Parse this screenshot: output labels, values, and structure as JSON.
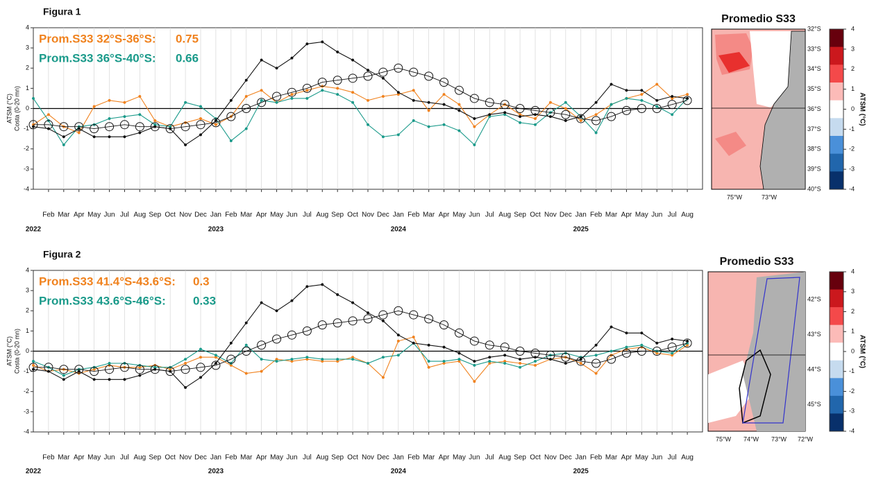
{
  "chart_data": [
    {
      "type": "line",
      "title": "Figura 1",
      "ylabel": "ATSM (°C)",
      "ylabel2": "Costa (0-20 mn)",
      "ylim": [
        -4,
        4
      ],
      "yticks": [
        -4,
        -3,
        -2,
        -1,
        0,
        1,
        2,
        3,
        4
      ],
      "grid": true,
      "xlim": [
        "2022-01",
        "2025-09"
      ],
      "x": [
        "2022-01",
        "2022-02",
        "2022-03",
        "2022-04",
        "2022-05",
        "2022-06",
        "2022-07",
        "2022-08",
        "2022-09",
        "2022-10",
        "2022-11",
        "2022-12",
        "2023-01",
        "2023-02",
        "2023-03",
        "2023-04",
        "2023-05",
        "2023-06",
        "2023-07",
        "2023-08",
        "2023-09",
        "2023-10",
        "2023-11",
        "2023-12",
        "2024-01",
        "2024-02",
        "2024-03",
        "2024-04",
        "2024-05",
        "2024-06",
        "2024-07",
        "2024-08",
        "2024-09",
        "2024-10",
        "2024-11",
        "2024-12",
        "2025-01",
        "2025-02",
        "2025-03",
        "2025-04",
        "2025-05",
        "2025-06",
        "2025-07",
        "2025-08"
      ],
      "xticks": [
        {
          "value": "2022-02",
          "label": "Feb"
        },
        {
          "value": "2022-03",
          "label": "Mar"
        },
        {
          "value": "2022-04",
          "label": "Apr"
        },
        {
          "value": "2022-05",
          "label": "May"
        },
        {
          "value": "2022-06",
          "label": "Jun"
        },
        {
          "value": "2022-07",
          "label": "Jul"
        },
        {
          "value": "2022-08",
          "label": "Aug"
        },
        {
          "value": "2022-09",
          "label": "Sep"
        },
        {
          "value": "2022-10",
          "label": "Oct"
        },
        {
          "value": "2022-11",
          "label": "Nov"
        },
        {
          "value": "2022-12",
          "label": "Dec"
        },
        {
          "value": "2023-01",
          "label": "Jan"
        },
        {
          "value": "2023-02",
          "label": "Feb"
        },
        {
          "value": "2023-03",
          "label": "Mar"
        },
        {
          "value": "2023-04",
          "label": "Apr"
        },
        {
          "value": "2023-05",
          "label": "May"
        },
        {
          "value": "2023-06",
          "label": "Jun"
        },
        {
          "value": "2023-07",
          "label": "Jul"
        },
        {
          "value": "2023-08",
          "label": "Aug"
        },
        {
          "value": "2023-09",
          "label": "Sep"
        },
        {
          "value": "2023-10",
          "label": "Oct"
        },
        {
          "value": "2023-11",
          "label": "Nov"
        },
        {
          "value": "2023-12",
          "label": "Dec"
        },
        {
          "value": "2024-01",
          "label": "Jan"
        },
        {
          "value": "2024-02",
          "label": "Feb"
        },
        {
          "value": "2024-03",
          "label": "Mar"
        },
        {
          "value": "2024-04",
          "label": "Apr"
        },
        {
          "value": "2024-05",
          "label": "May"
        },
        {
          "value": "2024-06",
          "label": "Jun"
        },
        {
          "value": "2024-07",
          "label": "Jul"
        },
        {
          "value": "2024-08",
          "label": "Aug"
        },
        {
          "value": "2024-09",
          "label": "Sep"
        },
        {
          "value": "2024-10",
          "label": "Oct"
        },
        {
          "value": "2024-11",
          "label": "Nov"
        },
        {
          "value": "2024-12",
          "label": "Dec"
        },
        {
          "value": "2025-01",
          "label": "Jan"
        },
        {
          "value": "2025-02",
          "label": "Feb"
        },
        {
          "value": "2025-03",
          "label": "Mar"
        },
        {
          "value": "2025-04",
          "label": "Apr"
        },
        {
          "value": "2025-05",
          "label": "May"
        },
        {
          "value": "2025-06",
          "label": "Jun"
        },
        {
          "value": "2025-07",
          "label": "Jul"
        },
        {
          "value": "2025-08",
          "label": "Aug"
        }
      ],
      "year_ticks": [
        {
          "value": "2022-01",
          "label": "2022"
        },
        {
          "value": "2023-01",
          "label": "2023"
        },
        {
          "value": "2024-01",
          "label": "2024"
        },
        {
          "value": "2025-01",
          "label": "2025"
        }
      ],
      "series": [
        {
          "name": "Prom.S33 32°S-36°S:",
          "mean": 0.75,
          "color": "#f0821e",
          "marker": "dot",
          "values": [
            -0.8,
            -0.3,
            -0.9,
            -1.2,
            0.1,
            0.4,
            0.3,
            0.6,
            -0.6,
            -0.9,
            -0.7,
            -0.5,
            -0.8,
            -0.4,
            0.6,
            0.9,
            0.3,
            0.7,
            0.9,
            1.1,
            1.0,
            0.8,
            0.4,
            0.6,
            0.7,
            0.9,
            -0.1,
            0.7,
            0.2,
            -0.9,
            -0.3,
            0.2,
            -0.3,
            -0.5,
            0.3,
            0.0,
            -0.6,
            -0.3,
            0.2,
            0.5,
            0.7,
            1.2,
            0.5,
            0.7
          ]
        },
        {
          "name": "Prom.S33 36°S-40°S:",
          "mean": 0.66,
          "color": "#1a9a8a",
          "marker": "dot",
          "values": [
            0.5,
            -0.6,
            -1.8,
            -0.9,
            -0.8,
            -0.5,
            -0.4,
            -0.3,
            -0.8,
            -0.9,
            0.3,
            0.1,
            -0.5,
            -1.6,
            -1.0,
            0.4,
            0.3,
            0.5,
            0.5,
            0.9,
            0.7,
            0.3,
            -0.8,
            -1.4,
            -1.3,
            -0.6,
            -0.9,
            -0.8,
            -1.1,
            -1.8,
            -0.4,
            -0.3,
            -0.7,
            -0.8,
            -0.2,
            0.3,
            -0.4,
            -1.2,
            0.2,
            0.5,
            0.4,
            0.1,
            -0.3,
            0.5
          ]
        },
        {
          "color": "#111111",
          "marker": "dot",
          "values": [
            -0.9,
            -1.0,
            -1.4,
            -1.0,
            -1.4,
            -1.4,
            -1.4,
            -1.2,
            -0.9,
            -1.0,
            -1.8,
            -1.3,
            -0.6,
            0.4,
            1.4,
            2.4,
            2.0,
            2.5,
            3.2,
            3.3,
            2.8,
            2.4,
            1.9,
            1.5,
            0.8,
            0.4,
            0.3,
            0.2,
            -0.1,
            -0.5,
            -0.3,
            -0.2,
            -0.4,
            -0.3,
            -0.4,
            -0.6,
            -0.4,
            0.3,
            1.2,
            0.9,
            0.9,
            0.4,
            0.6,
            0.5
          ]
        },
        {
          "color": "#111111",
          "marker": "circle",
          "values": [
            -0.8,
            -0.8,
            -0.9,
            -0.9,
            -1.0,
            -0.9,
            -0.8,
            -0.9,
            -0.9,
            -1.0,
            -0.9,
            -0.8,
            -0.7,
            -0.4,
            0.0,
            0.3,
            0.6,
            0.8,
            1.0,
            1.3,
            1.4,
            1.5,
            1.6,
            1.8,
            2.0,
            1.8,
            1.6,
            1.3,
            0.9,
            0.5,
            0.3,
            0.2,
            0.0,
            -0.1,
            -0.2,
            -0.3,
            -0.5,
            -0.6,
            -0.4,
            -0.1,
            0.0,
            0.0,
            0.2,
            0.4
          ]
        }
      ]
    },
    {
      "type": "line",
      "title": "Figura 2",
      "ylabel": "ATSM (°C)",
      "ylabel2": "Costa (0-20 mn)",
      "ylim": [
        -4,
        4
      ],
      "yticks": [
        -4,
        -3,
        -2,
        -1,
        0,
        1,
        2,
        3,
        4
      ],
      "grid": true,
      "xlim": [
        "2022-01",
        "2025-09"
      ],
      "x": [
        "2022-01",
        "2022-02",
        "2022-03",
        "2022-04",
        "2022-05",
        "2022-06",
        "2022-07",
        "2022-08",
        "2022-09",
        "2022-10",
        "2022-11",
        "2022-12",
        "2023-01",
        "2023-02",
        "2023-03",
        "2023-04",
        "2023-05",
        "2023-06",
        "2023-07",
        "2023-08",
        "2023-09",
        "2023-10",
        "2023-11",
        "2023-12",
        "2024-01",
        "2024-02",
        "2024-03",
        "2024-04",
        "2024-05",
        "2024-06",
        "2024-07",
        "2024-08",
        "2024-09",
        "2024-10",
        "2024-11",
        "2024-12",
        "2025-01",
        "2025-02",
        "2025-03",
        "2025-04",
        "2025-05",
        "2025-06",
        "2025-07",
        "2025-08"
      ],
      "xticks": [
        {
          "value": "2022-02",
          "label": "Feb"
        },
        {
          "value": "2022-03",
          "label": "Mar"
        },
        {
          "value": "2022-04",
          "label": "Apr"
        },
        {
          "value": "2022-05",
          "label": "May"
        },
        {
          "value": "2022-06",
          "label": "Jun"
        },
        {
          "value": "2022-07",
          "label": "Jul"
        },
        {
          "value": "2022-08",
          "label": "Aug"
        },
        {
          "value": "2022-09",
          "label": "Sep"
        },
        {
          "value": "2022-10",
          "label": "Oct"
        },
        {
          "value": "2022-11",
          "label": "Nov"
        },
        {
          "value": "2022-12",
          "label": "Dec"
        },
        {
          "value": "2023-01",
          "label": "Jan"
        },
        {
          "value": "2023-02",
          "label": "Feb"
        },
        {
          "value": "2023-03",
          "label": "Mar"
        },
        {
          "value": "2023-04",
          "label": "Apr"
        },
        {
          "value": "2023-05",
          "label": "May"
        },
        {
          "value": "2023-06",
          "label": "Jun"
        },
        {
          "value": "2023-07",
          "label": "Jul"
        },
        {
          "value": "2023-08",
          "label": "Aug"
        },
        {
          "value": "2023-09",
          "label": "Sep"
        },
        {
          "value": "2023-10",
          "label": "Oct"
        },
        {
          "value": "2023-11",
          "label": "Nov"
        },
        {
          "value": "2023-12",
          "label": "Dec"
        },
        {
          "value": "2024-01",
          "label": "Jan"
        },
        {
          "value": "2024-02",
          "label": "Feb"
        },
        {
          "value": "2024-03",
          "label": "Mar"
        },
        {
          "value": "2024-04",
          "label": "Apr"
        },
        {
          "value": "2024-05",
          "label": "May"
        },
        {
          "value": "2024-06",
          "label": "Jun"
        },
        {
          "value": "2024-07",
          "label": "Jul"
        },
        {
          "value": "2024-08",
          "label": "Aug"
        },
        {
          "value": "2024-09",
          "label": "Sep"
        },
        {
          "value": "2024-10",
          "label": "Oct"
        },
        {
          "value": "2024-11",
          "label": "Nov"
        },
        {
          "value": "2024-12",
          "label": "Dec"
        },
        {
          "value": "2025-01",
          "label": "Jan"
        },
        {
          "value": "2025-02",
          "label": "Feb"
        },
        {
          "value": "2025-03",
          "label": "Mar"
        },
        {
          "value": "2025-04",
          "label": "Apr"
        },
        {
          "value": "2025-05",
          "label": "May"
        },
        {
          "value": "2025-06",
          "label": "Jun"
        },
        {
          "value": "2025-07",
          "label": "Jul"
        },
        {
          "value": "2025-08",
          "label": "Aug"
        }
      ],
      "year_ticks": [
        {
          "value": "2022-01",
          "label": "2022"
        },
        {
          "value": "2023-01",
          "label": "2023"
        },
        {
          "value": "2024-01",
          "label": "2024"
        },
        {
          "value": "2025-01",
          "label": "2025"
        }
      ],
      "series": [
        {
          "name": "Prom.S33 41.4°S-43.6°S:",
          "mean": 0.3,
          "color": "#f0821e",
          "marker": "dot",
          "values": [
            -0.7,
            -1.0,
            -0.9,
            -1.1,
            -0.9,
            -0.7,
            -0.8,
            -0.8,
            -0.7,
            -0.9,
            -0.6,
            -0.3,
            -0.3,
            -0.7,
            -1.1,
            -1.0,
            -0.4,
            -0.5,
            -0.4,
            -0.5,
            -0.5,
            -0.3,
            -0.6,
            -1.3,
            0.5,
            0.7,
            -0.8,
            -0.6,
            -0.5,
            -1.5,
            -0.6,
            -0.5,
            -0.6,
            -0.7,
            -0.4,
            -0.3,
            -0.6,
            -1.1,
            -0.2,
            0.1,
            0.2,
            -0.1,
            -0.2,
            0.3
          ]
        },
        {
          "name": "Prom.S33 43.6°S-46°S:",
          "mean": 0.33,
          "color": "#1a9a8a",
          "marker": "dot",
          "values": [
            -0.5,
            -0.8,
            -1.2,
            -0.9,
            -0.8,
            -0.6,
            -0.6,
            -0.7,
            -0.8,
            -0.8,
            -0.4,
            0.1,
            -0.2,
            -0.6,
            0.3,
            -0.4,
            -0.5,
            -0.4,
            -0.3,
            -0.4,
            -0.4,
            -0.4,
            -0.6,
            -0.3,
            -0.2,
            0.4,
            -0.5,
            -0.5,
            -0.4,
            -0.7,
            -0.5,
            -0.6,
            -0.8,
            -0.5,
            -0.2,
            -0.1,
            -0.3,
            -0.2,
            0.0,
            0.2,
            0.3,
            0.0,
            -0.1,
            0.4
          ]
        },
        {
          "color": "#111111",
          "marker": "dot",
          "values": [
            -0.9,
            -1.0,
            -1.4,
            -1.0,
            -1.4,
            -1.4,
            -1.4,
            -1.2,
            -0.9,
            -1.0,
            -1.8,
            -1.3,
            -0.6,
            0.4,
            1.4,
            2.4,
            2.0,
            2.5,
            3.2,
            3.3,
            2.8,
            2.4,
            1.9,
            1.5,
            0.8,
            0.4,
            0.3,
            0.2,
            -0.1,
            -0.5,
            -0.3,
            -0.2,
            -0.4,
            -0.3,
            -0.4,
            -0.6,
            -0.4,
            0.3,
            1.2,
            0.9,
            0.9,
            0.4,
            0.6,
            0.5
          ]
        },
        {
          "color": "#111111",
          "marker": "circle",
          "values": [
            -0.8,
            -0.8,
            -0.9,
            -0.9,
            -1.0,
            -0.9,
            -0.8,
            -0.9,
            -0.9,
            -1.0,
            -0.9,
            -0.8,
            -0.7,
            -0.4,
            0.0,
            0.3,
            0.6,
            0.8,
            1.0,
            1.3,
            1.4,
            1.5,
            1.6,
            1.8,
            2.0,
            1.8,
            1.6,
            1.3,
            0.9,
            0.5,
            0.3,
            0.2,
            0.0,
            -0.1,
            -0.2,
            -0.3,
            -0.5,
            -0.6,
            -0.4,
            -0.1,
            0.0,
            0.0,
            0.2,
            0.4
          ]
        }
      ]
    }
  ],
  "maps": [
    {
      "title": "Promedio S33",
      "lat_labels": [
        "32°S",
        "33°S",
        "34°S",
        "35°S",
        "36°S",
        "37°S",
        "38°S",
        "39°S",
        "40°S"
      ],
      "lon_labels": [
        "75°W",
        "73°W"
      ],
      "cbar_ticks": [
        4,
        3,
        2,
        1,
        0,
        -1,
        -2,
        -3,
        -4
      ],
      "cbar_lim": [
        -4,
        4
      ],
      "cbar_label": "ATSM (°C)"
    },
    {
      "title": "Promedio S33",
      "lat_labels": [
        "42°S",
        "43°S",
        "44°S",
        "45°S"
      ],
      "lon_labels": [
        "75°W",
        "74°W",
        "73°W",
        "72°W"
      ],
      "cbar_ticks": [
        4,
        3,
        2,
        1,
        0,
        -1,
        -2,
        -3,
        -4
      ],
      "cbar_lim": [
        -4,
        4
      ],
      "cbar_label": "ATSM (°C)"
    }
  ]
}
